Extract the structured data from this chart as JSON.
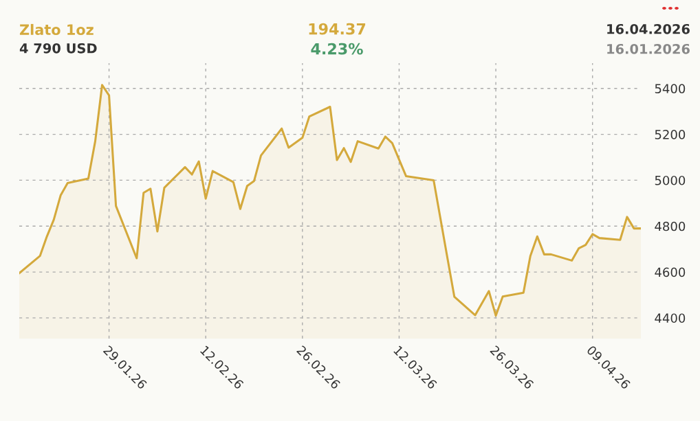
{
  "chart_data": {
    "type": "area",
    "title": "Zlato 1oz",
    "annotations": [
      "4 790 USD",
      "194.37",
      "4.23%",
      "16.04.2026",
      "16.01.2026"
    ],
    "x": [
      "2026-01-16",
      "2026-01-19",
      "2026-01-20",
      "2026-01-21",
      "2026-01-22",
      "2026-01-23",
      "2026-01-26",
      "2026-01-27",
      "2026-01-28",
      "2026-01-29",
      "2026-01-30",
      "2026-02-02",
      "2026-02-03",
      "2026-02-04",
      "2026-02-05",
      "2026-02-06",
      "2026-02-09",
      "2026-02-10",
      "2026-02-11",
      "2026-02-12",
      "2026-02-13",
      "2026-02-16",
      "2026-02-17",
      "2026-02-18",
      "2026-02-19",
      "2026-02-20",
      "2026-02-23",
      "2026-02-24",
      "2026-02-26",
      "2026-02-27",
      "2026-03-02",
      "2026-03-03",
      "2026-03-04",
      "2026-03-05",
      "2026-03-06",
      "2026-03-09",
      "2026-03-10",
      "2026-03-11",
      "2026-03-13",
      "2026-03-17",
      "2026-03-19",
      "2026-03-20",
      "2026-03-23",
      "2026-03-25",
      "2026-03-26",
      "2026-03-27",
      "2026-03-30",
      "2026-03-31",
      "2026-04-01",
      "2026-04-02",
      "2026-04-03",
      "2026-04-06",
      "2026-04-07",
      "2026-04-08",
      "2026-04-09",
      "2026-04-10",
      "2026-04-13",
      "2026-04-14",
      "2026-04-15",
      "2026-04-16"
    ],
    "series": [
      {
        "color": "#d4a93c",
        "values": [
          4595,
          4670,
          4755,
          4828,
          4935,
          4988,
          5007,
          5170,
          5415,
          5370,
          4888,
          4660,
          4945,
          4963,
          4777,
          4967,
          5057,
          5025,
          5082,
          4920,
          5040,
          4992,
          4875,
          4975,
          4997,
          5108,
          5225,
          5142,
          5185,
          5278,
          5320,
          5088,
          5140,
          5080,
          5170,
          5138,
          5190,
          5162,
          5018,
          5000,
          4660,
          4492,
          4412,
          4517,
          4410,
          4493,
          4510,
          4670,
          4755,
          4677,
          4677,
          4650,
          4703,
          4718,
          4765,
          4748,
          4740,
          4840,
          4790,
          4790
        ]
      }
    ],
    "xlim": [
      "2026-01-16",
      "2026-04-16"
    ],
    "xticks": [
      {
        "value": "2026-01-29",
        "label": "29.01.26"
      },
      {
        "value": "2026-02-12",
        "label": "12.02.26"
      },
      {
        "value": "2026-02-26",
        "label": "26.02.26"
      },
      {
        "value": "2026-03-12",
        "label": "12.03.26"
      },
      {
        "value": "2026-03-26",
        "label": "26.03.26"
      },
      {
        "value": "2026-04-09",
        "label": "09.04.26"
      }
    ],
    "ylim": [
      4310,
      5510
    ],
    "yticks": [
      4400,
      4600,
      4800,
      5000,
      5200,
      5400
    ],
    "grid": true
  }
}
